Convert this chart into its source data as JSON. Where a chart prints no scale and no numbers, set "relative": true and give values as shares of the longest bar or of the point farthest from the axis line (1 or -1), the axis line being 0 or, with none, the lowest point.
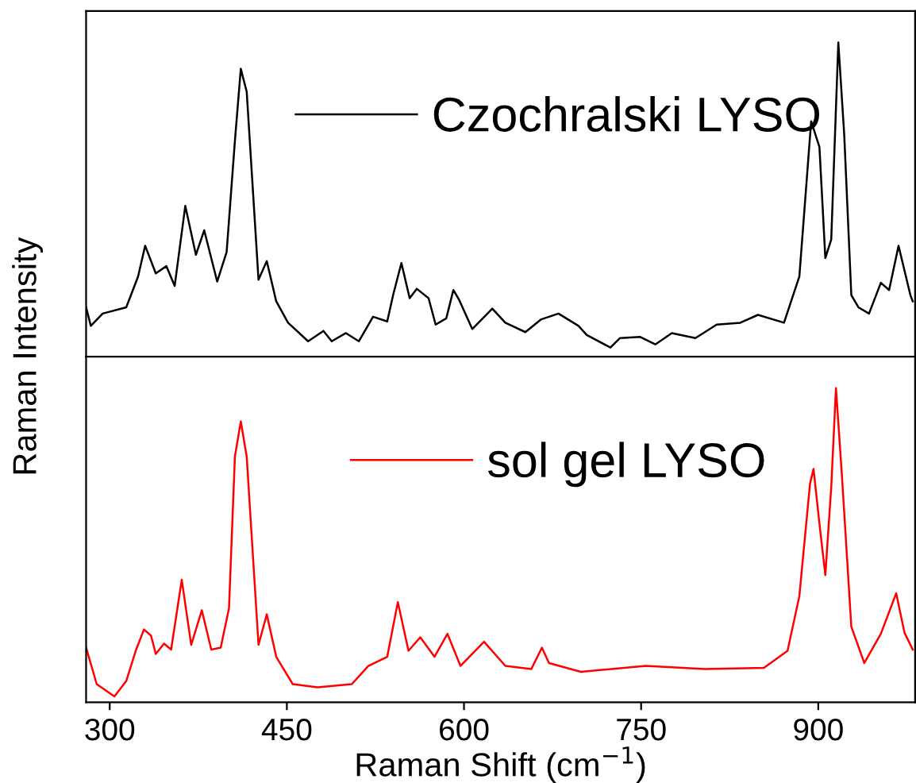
{
  "chart_data": [
    {
      "type": "line",
      "relative": true,
      "ylabel": "Raman Intensity",
      "xlim": [
        280,
        982
      ],
      "xticks": [
        300,
        450,
        600,
        750,
        900
      ],
      "tick_labels": false,
      "legend": "top",
      "grid": false,
      "series": [
        {
          "name": "Czochralski LYSO",
          "color": "#000000",
          "x": [
            280,
            284,
            294,
            314,
            324,
            330,
            339,
            348,
            355,
            364,
            373,
            380,
            391,
            399,
            406,
            411,
            416,
            426,
            433,
            441,
            451,
            468,
            481,
            488,
            500,
            511,
            523,
            535,
            540,
            547,
            554,
            560,
            570,
            576,
            585,
            591,
            596,
            607,
            624,
            635,
            652,
            665,
            680,
            697,
            704,
            724,
            732,
            749,
            762,
            776,
            796,
            814,
            834,
            849,
            871,
            884,
            894,
            901,
            906,
            911,
            917,
            922,
            928,
            934,
            943,
            953,
            960,
            968,
            978,
            980
          ],
          "values": [
            0.157,
            0.098,
            0.137,
            0.157,
            0.255,
            0.353,
            0.265,
            0.288,
            0.225,
            0.48,
            0.324,
            0.402,
            0.239,
            0.333,
            0.686,
            0.916,
            0.843,
            0.245,
            0.304,
            0.176,
            0.108,
            0.049,
            0.082,
            0.049,
            0.075,
            0.049,
            0.127,
            0.112,
            0.196,
            0.298,
            0.186,
            0.216,
            0.186,
            0.102,
            0.122,
            0.212,
            0.18,
            0.088,
            0.153,
            0.108,
            0.078,
            0.118,
            0.137,
            0.098,
            0.069,
            0.029,
            0.059,
            0.063,
            0.039,
            0.075,
            0.059,
            0.102,
            0.108,
            0.133,
            0.108,
            0.255,
            0.749,
            0.667,
            0.314,
            0.373,
            1.0,
            0.706,
            0.196,
            0.157,
            0.137,
            0.235,
            0.212,
            0.353,
            0.196,
            0.176
          ]
        }
      ]
    },
    {
      "type": "line",
      "relative": true,
      "xlabel": "Raman Shift (cm$^{−1}$)",
      "xlim": [
        280,
        982
      ],
      "xticks": [
        300,
        450,
        600,
        750,
        900
      ],
      "tick_labels": "x",
      "legend": "top",
      "grid": false,
      "series": [
        {
          "name": "sol gel LYSO",
          "color": "#ff0000",
          "x": [
            280,
            289,
            304,
            314,
            322,
            329,
            335,
            339,
            346,
            352,
            361,
            369,
            378,
            386,
            394,
            401,
            406,
            411,
            416,
            426,
            433,
            441,
            455,
            476,
            505,
            519,
            535,
            544,
            553,
            563,
            575,
            586,
            597,
            617,
            635,
            657,
            666,
            672,
            699,
            754,
            804,
            854,
            874,
            884,
            893,
            896,
            901,
            906,
            911,
            915,
            920,
            928,
            939,
            953,
            966,
            973,
            980
          ],
          "values": [
            0.174,
            0.058,
            0.019,
            0.068,
            0.164,
            0.232,
            0.212,
            0.154,
            0.187,
            0.168,
            0.39,
            0.183,
            0.293,
            0.168,
            0.174,
            0.299,
            0.782,
            0.894,
            0.782,
            0.183,
            0.28,
            0.145,
            0.058,
            0.048,
            0.058,
            0.116,
            0.145,
            0.319,
            0.164,
            0.207,
            0.145,
            0.218,
            0.116,
            0.193,
            0.116,
            0.106,
            0.174,
            0.125,
            0.097,
            0.116,
            0.106,
            0.11,
            0.164,
            0.338,
            0.695,
            0.743,
            0.569,
            0.405,
            0.685,
            1.0,
            0.724,
            0.241,
            0.125,
            0.218,
            0.347,
            0.222,
            0.168
          ]
        }
      ]
    }
  ]
}
